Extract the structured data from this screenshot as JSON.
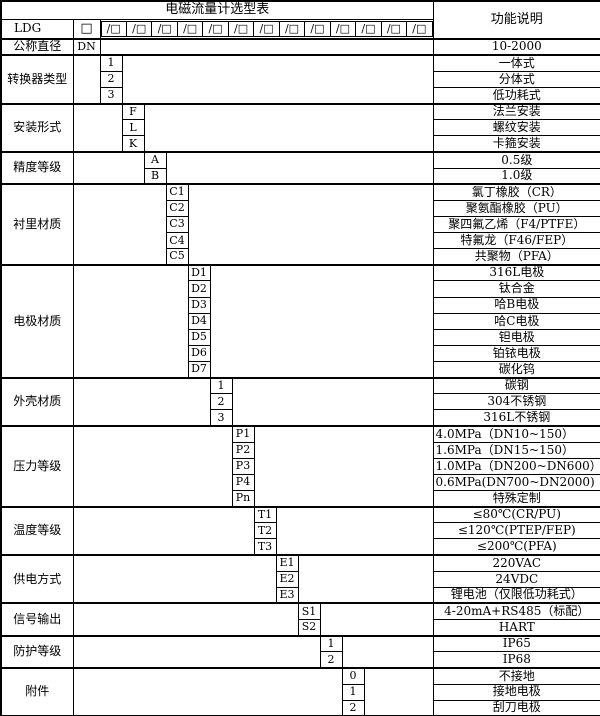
{
  "table": {
    "title": "电磁流量计选型表",
    "function_header": "功能说明",
    "model_code": {
      "prefix": "LDG",
      "base_box": "□",
      "slot_text": "/□",
      "slot_count": 13
    },
    "sections": [
      {
        "label": "公称直径",
        "code_col": 1,
        "rows": [
          {
            "code": "DN",
            "desc": "10-2000"
          }
        ]
      },
      {
        "label": "转换器类型",
        "code_col": 2,
        "rows": [
          {
            "code": "1",
            "desc": "一体式"
          },
          {
            "code": "2",
            "desc": "分体式"
          },
          {
            "code": "3",
            "desc": "低功耗式"
          }
        ]
      },
      {
        "label": "安装形式",
        "code_col": 3,
        "rows": [
          {
            "code": "F",
            "desc": "法兰安装"
          },
          {
            "code": "L",
            "desc": "螺纹安装"
          },
          {
            "code": "K",
            "desc": "卡箍安装"
          }
        ]
      },
      {
        "label": "精度等级",
        "code_col": 4,
        "rows": [
          {
            "code": "A",
            "desc": "0.5级"
          },
          {
            "code": "B",
            "desc": "1.0级"
          }
        ]
      },
      {
        "label": "衬里材质",
        "code_col": 5,
        "rows": [
          {
            "code": "C1",
            "desc": "氯丁橡胶（CR）"
          },
          {
            "code": "C2",
            "desc": "聚氨酯橡胶（PU）"
          },
          {
            "code": "C3",
            "desc": "聚四氟乙烯（F4/PTFE）"
          },
          {
            "code": "C4",
            "desc": "特氟龙（F46/FEP）"
          },
          {
            "code": "C5",
            "desc": "共聚物（PFA）"
          }
        ]
      },
      {
        "label": "电极材质",
        "code_col": 6,
        "rows": [
          {
            "code": "D1",
            "desc": "316L电极"
          },
          {
            "code": "D2",
            "desc": "钛合金"
          },
          {
            "code": "D3",
            "desc": "哈B电极"
          },
          {
            "code": "D4",
            "desc": "哈C电极"
          },
          {
            "code": "D5",
            "desc": "钽电极"
          },
          {
            "code": "D6",
            "desc": "铂铱电极"
          },
          {
            "code": "D7",
            "desc": "碳化钨"
          }
        ]
      },
      {
        "label": "外壳材质",
        "code_col": 7,
        "rows": [
          {
            "code": "1",
            "desc": "碳钢"
          },
          {
            "code": "2",
            "desc": "304不锈钢"
          },
          {
            "code": "3",
            "desc": "316L不锈钢"
          }
        ]
      },
      {
        "label": "压力等级",
        "code_col": 8,
        "rows": [
          {
            "code": "P1",
            "desc": "4.0MPa（DN10~150）",
            "align": "left"
          },
          {
            "code": "P2",
            "desc": "1.6MPa（DN15~150）",
            "align": "left"
          },
          {
            "code": "P3",
            "desc": "1.0MPa（DN200~DN600）",
            "align": "left"
          },
          {
            "code": "P4",
            "desc": "0.6MPa(DN700~DN2000)",
            "align": "left"
          },
          {
            "code": "Pn",
            "desc": "特殊定制"
          }
        ]
      },
      {
        "label": "温度等级",
        "code_col": 9,
        "rows": [
          {
            "code": "T1",
            "desc": "≤80℃(CR/PU)"
          },
          {
            "code": "T2",
            "desc": "≤120℃(PTEP/FEP)"
          },
          {
            "code": "T3",
            "desc": "≤200℃(PFA)"
          }
        ]
      },
      {
        "label": "供电方式",
        "code_col": 10,
        "rows": [
          {
            "code": "E1",
            "desc": "220VAC"
          },
          {
            "code": "E2",
            "desc": "24VDC"
          },
          {
            "code": "E3",
            "desc": "锂电池（仅限低功耗式）"
          }
        ]
      },
      {
        "label": "信号输出",
        "code_col": 11,
        "rows": [
          {
            "code": "S1",
            "desc": "4-20mA+RS485（标配）"
          },
          {
            "code": "S2",
            "desc": "HART"
          }
        ]
      },
      {
        "label": "防护等级",
        "code_col": 12,
        "rows": [
          {
            "code": "1",
            "desc": "IP65"
          },
          {
            "code": "2",
            "desc": "IP68"
          }
        ]
      },
      {
        "label": "附件",
        "code_col": 13,
        "rows": [
          {
            "code": "0",
            "desc": "不接地"
          },
          {
            "code": "1",
            "desc": "接地电极"
          },
          {
            "code": "2",
            "desc": "刮刀电极"
          }
        ]
      }
    ]
  },
  "colors": {
    "border": "#000000",
    "background": "#ffffff",
    "text": "#000000"
  }
}
